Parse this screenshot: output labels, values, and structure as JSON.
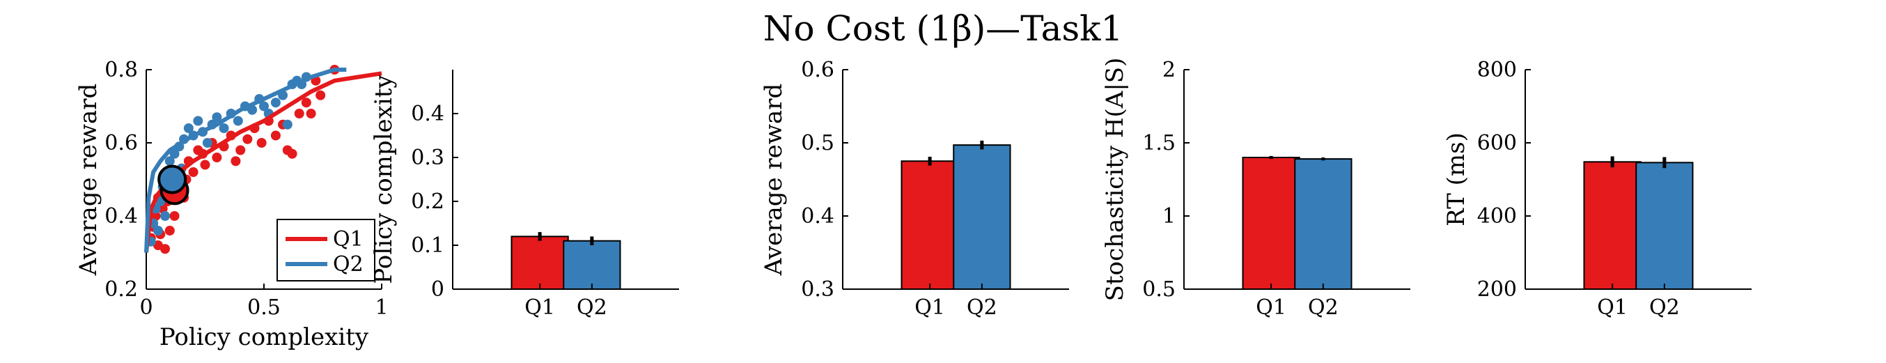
{
  "figure": {
    "title": "No Cost (1β)—Task1"
  },
  "colors": {
    "Q1": "#e41a1c",
    "Q2": "#377eb8",
    "axis": "#000000"
  },
  "chart_data": [
    {
      "type": "scatter",
      "xlabel": "Policy complexity",
      "ylabel": "Average reward",
      "xlim": [
        0,
        1
      ],
      "ylim": [
        0.2,
        0.8
      ],
      "xticks": [
        "0",
        "0.5",
        "1"
      ],
      "yticks": [
        "0.2",
        "0.4",
        "0.6",
        "0.8"
      ],
      "legend": {
        "placement": "bottom-right",
        "entries": [
          "Q1",
          "Q2"
        ]
      },
      "series": [
        {
          "name": "Q1",
          "points": [
            [
              0.02,
              0.34
            ],
            [
              0.03,
              0.37
            ],
            [
              0.04,
              0.4
            ],
            [
              0.05,
              0.32
            ],
            [
              0.06,
              0.35
            ],
            [
              0.07,
              0.42
            ],
            [
              0.08,
              0.31
            ],
            [
              0.09,
              0.44
            ],
            [
              0.1,
              0.36
            ],
            [
              0.11,
              0.48
            ],
            [
              0.12,
              0.4
            ],
            [
              0.13,
              0.46
            ],
            [
              0.14,
              0.5
            ],
            [
              0.15,
              0.53
            ],
            [
              0.16,
              0.45
            ],
            [
              0.18,
              0.55
            ],
            [
              0.2,
              0.52
            ],
            [
              0.22,
              0.58
            ],
            [
              0.25,
              0.54
            ],
            [
              0.28,
              0.6
            ],
            [
              0.3,
              0.56
            ],
            [
              0.33,
              0.59
            ],
            [
              0.36,
              0.62
            ],
            [
              0.38,
              0.55
            ],
            [
              0.4,
              0.58
            ],
            [
              0.43,
              0.61
            ],
            [
              0.46,
              0.64
            ],
            [
              0.49,
              0.6
            ],
            [
              0.52,
              0.66
            ],
            [
              0.55,
              0.62
            ],
            [
              0.58,
              0.65
            ],
            [
              0.6,
              0.58
            ],
            [
              0.62,
              0.57
            ],
            [
              0.65,
              0.68
            ],
            [
              0.68,
              0.71
            ],
            [
              0.7,
              0.68
            ],
            [
              0.72,
              0.77
            ],
            [
              0.74,
              0.73
            ],
            [
              0.8,
              0.8
            ],
            [
              0.05,
              0.45
            ],
            [
              0.17,
              0.5
            ],
            [
              0.24,
              0.57
            ]
          ],
          "curve": [
            [
              0.0,
              0.3
            ],
            [
              0.02,
              0.42
            ],
            [
              0.05,
              0.46
            ],
            [
              0.1,
              0.5
            ],
            [
              0.2,
              0.55
            ],
            [
              0.3,
              0.59
            ],
            [
              0.4,
              0.63
            ],
            [
              0.5,
              0.66
            ],
            [
              0.6,
              0.7
            ],
            [
              0.7,
              0.74
            ],
            [
              0.8,
              0.77
            ],
            [
              0.9,
              0.78
            ],
            [
              1.0,
              0.79
            ]
          ],
          "mean": [
            0.12,
            0.47
          ]
        },
        {
          "name": "Q2",
          "points": [
            [
              0.02,
              0.33
            ],
            [
              0.03,
              0.38
            ],
            [
              0.04,
              0.42
            ],
            [
              0.05,
              0.36
            ],
            [
              0.06,
              0.44
            ],
            [
              0.07,
              0.48
            ],
            [
              0.08,
              0.4
            ],
            [
              0.09,
              0.51
            ],
            [
              0.1,
              0.55
            ],
            [
              0.12,
              0.57
            ],
            [
              0.14,
              0.59
            ],
            [
              0.16,
              0.61
            ],
            [
              0.18,
              0.64
            ],
            [
              0.2,
              0.62
            ],
            [
              0.22,
              0.66
            ],
            [
              0.24,
              0.63
            ],
            [
              0.26,
              0.6
            ],
            [
              0.28,
              0.65
            ],
            [
              0.3,
              0.67
            ],
            [
              0.33,
              0.64
            ],
            [
              0.36,
              0.68
            ],
            [
              0.39,
              0.66
            ],
            [
              0.42,
              0.7
            ],
            [
              0.45,
              0.69
            ],
            [
              0.48,
              0.72
            ],
            [
              0.5,
              0.7
            ],
            [
              0.52,
              0.68
            ],
            [
              0.55,
              0.71
            ],
            [
              0.58,
              0.73
            ],
            [
              0.6,
              0.65
            ],
            [
              0.62,
              0.76
            ],
            [
              0.64,
              0.77
            ],
            [
              0.66,
              0.76
            ],
            [
              0.68,
              0.78
            ],
            [
              0.11,
              0.45
            ],
            [
              0.15,
              0.53
            ]
          ],
          "curve": [
            [
              0.0,
              0.3
            ],
            [
              0.01,
              0.45
            ],
            [
              0.03,
              0.52
            ],
            [
              0.06,
              0.55
            ],
            [
              0.1,
              0.58
            ],
            [
              0.2,
              0.62
            ],
            [
              0.3,
              0.65
            ],
            [
              0.4,
              0.69
            ],
            [
              0.5,
              0.72
            ],
            [
              0.6,
              0.75
            ],
            [
              0.7,
              0.78
            ],
            [
              0.8,
              0.8
            ],
            [
              0.85,
              0.8
            ]
          ],
          "mean": [
            0.11,
            0.5
          ]
        }
      ]
    },
    {
      "type": "bar",
      "categories": [
        "Q1",
        "Q2"
      ],
      "values": [
        0.12,
        0.11
      ],
      "errors": [
        0.01,
        0.01
      ],
      "ylabel": "Policy complexity",
      "ylim": [
        0,
        0.5
      ],
      "yticks": [
        "0",
        "0.1",
        "0.2",
        "0.3",
        "0.4"
      ]
    },
    {
      "type": "bar",
      "categories": [
        "Q1",
        "Q2"
      ],
      "values": [
        0.475,
        0.497
      ],
      "errors": [
        0.006,
        0.006
      ],
      "ylabel": "Average reward",
      "ylim": [
        0.3,
        0.6
      ],
      "yticks": [
        "0.3",
        "0.4",
        "0.5",
        "0.6"
      ]
    },
    {
      "type": "bar",
      "categories": [
        "Q1",
        "Q2"
      ],
      "values": [
        1.4,
        1.39
      ],
      "errors": [
        0.01,
        0.01
      ],
      "ylabel": "Stochasticity H(A|S)",
      "ylim": [
        0.5,
        2
      ],
      "yticks": [
        "0.5",
        "1",
        "1.5",
        "2"
      ]
    },
    {
      "type": "bar",
      "categories": [
        "Q1",
        "Q2"
      ],
      "values": [
        548,
        546
      ],
      "errors": [
        15,
        15
      ],
      "ylabel": "RT (ms)",
      "ylim": [
        200,
        800
      ],
      "yticks": [
        "200",
        "400",
        "600",
        "800"
      ]
    }
  ]
}
